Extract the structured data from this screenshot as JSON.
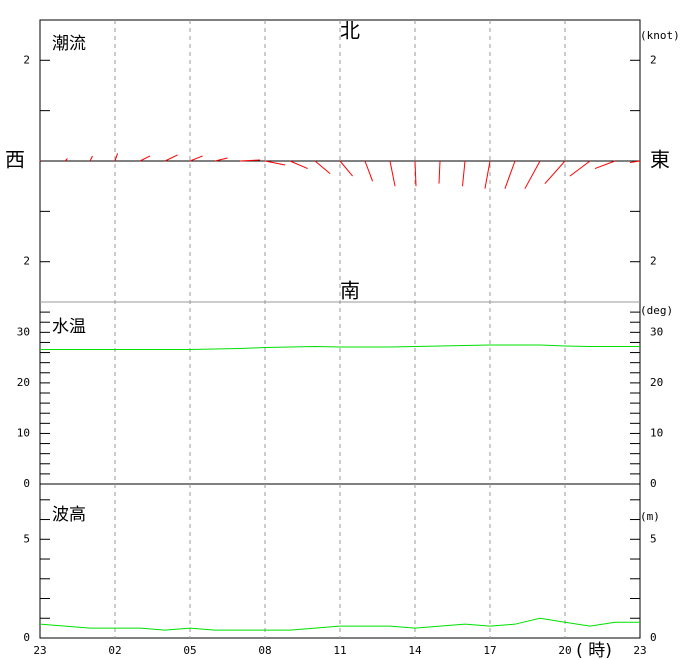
{
  "x_axis": {
    "categories": [
      "23",
      null,
      null,
      "02",
      null,
      null,
      "05",
      null,
      null,
      "08",
      null,
      null,
      "11",
      null,
      null,
      "14",
      null,
      null,
      "17",
      null,
      null,
      "20",
      null,
      null,
      "23"
    ],
    "unit_label": "( 時)"
  },
  "chart_data": [
    {
      "type": "vector",
      "title": "潮流",
      "unit_label": "(knot)",
      "north": "北",
      "south": "南",
      "west": "西",
      "east": "東",
      "color": "#ff0000",
      "u": [
        0,
        0.05,
        0.05,
        0.05,
        0.2,
        0.25,
        0.25,
        0.25,
        0.4,
        0.4,
        0.35,
        0.3,
        0.25,
        0.15,
        0.1,
        0.02,
        -0.02,
        -0.05,
        -0.1,
        -0.2,
        -0.3,
        -0.4,
        -0.4,
        -0.4,
        -0.2
      ],
      "v": [
        0.02,
        0.05,
        0.1,
        0.15,
        0.1,
        0.12,
        0.1,
        0.06,
        0.02,
        -0.08,
        -0.15,
        -0.25,
        -0.3,
        -0.4,
        -0.5,
        -0.5,
        -0.45,
        -0.5,
        -0.55,
        -0.55,
        -0.55,
        -0.45,
        -0.3,
        -0.15,
        -0.03
      ],
      "ylim": [
        -2.8,
        2.8
      ],
      "yticks": [
        2,
        {
          "value": -2,
          "label": "2"
        }
      ],
      "minor_yticks": [
        1,
        0,
        -1
      ]
    },
    {
      "type": "line",
      "title": "水温",
      "unit_label": "(deg)",
      "color": "#00e000",
      "values": [
        26.6,
        26.6,
        26.6,
        26.6,
        26.6,
        26.6,
        26.6,
        26.7,
        26.8,
        27.0,
        27.1,
        27.2,
        27.1,
        27.1,
        27.1,
        27.2,
        27.3,
        27.4,
        27.5,
        27.5,
        27.5,
        27.3,
        27.2,
        27.2,
        27.2
      ],
      "ylim": [
        0,
        36
      ],
      "yticks": [
        0,
        10,
        20,
        30
      ],
      "minor_yticks": [
        2,
        4,
        6,
        8,
        12,
        14,
        16,
        18,
        22,
        24,
        26,
        28,
        32,
        34
      ]
    },
    {
      "type": "line",
      "title": "波高",
      "unit_label": "(m)",
      "color": "#00e000",
      "values": [
        0.7,
        0.6,
        0.5,
        0.5,
        0.5,
        0.4,
        0.5,
        0.4,
        0.4,
        0.4,
        0.4,
        0.5,
        0.6,
        0.6,
        0.6,
        0.5,
        0.6,
        0.7,
        0.6,
        0.7,
        1.0,
        0.8,
        0.6,
        0.8,
        0.8
      ],
      "ylim": [
        0,
        7.8
      ],
      "yticks": [
        0,
        5
      ],
      "minor_yticks": [
        1,
        2,
        3,
        4,
        6,
        7
      ]
    }
  ]
}
